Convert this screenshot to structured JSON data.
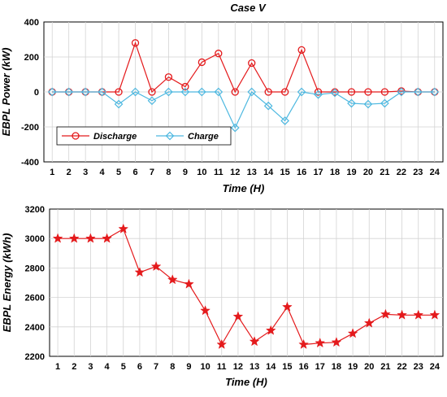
{
  "chart_data": [
    {
      "type": "line",
      "title": "Case V",
      "xlabel": "Time (H)",
      "ylabel": "EBPL Power (kW)",
      "x": [
        1,
        2,
        3,
        4,
        5,
        6,
        7,
        8,
        9,
        10,
        11,
        12,
        13,
        14,
        15,
        16,
        17,
        18,
        19,
        20,
        21,
        22,
        23,
        24
      ],
      "xlim": [
        0.5,
        24.5
      ],
      "ylim": [
        -400,
        400
      ],
      "yticks": [
        -400,
        -200,
        0,
        200,
        400
      ],
      "grid": true,
      "legend_position": "bottom-left",
      "series": [
        {
          "name": "Discharge",
          "color": "#e41a1c",
          "marker": "circle",
          "values": [
            0,
            0,
            0,
            0,
            0,
            280,
            0,
            85,
            30,
            170,
            220,
            0,
            165,
            0,
            0,
            240,
            0,
            0,
            0,
            0,
            0,
            5,
            0,
            0
          ]
        },
        {
          "name": "Charge",
          "color": "#4db8e0",
          "marker": "diamond",
          "values": [
            0,
            0,
            0,
            0,
            -70,
            0,
            -50,
            0,
            0,
            0,
            0,
            -205,
            0,
            -80,
            -165,
            0,
            -15,
            -5,
            -65,
            -70,
            -65,
            0,
            0,
            0
          ]
        }
      ]
    },
    {
      "type": "line",
      "title": "",
      "xlabel": "Time (H)",
      "ylabel": "EBPL Energy (kWh)",
      "x": [
        1,
        2,
        3,
        4,
        5,
        6,
        7,
        8,
        9,
        10,
        11,
        12,
        13,
        14,
        15,
        16,
        17,
        18,
        19,
        20,
        21,
        22,
        23,
        24
      ],
      "xlim": [
        0.5,
        24.5
      ],
      "ylim": [
        2200,
        3200
      ],
      "yticks": [
        2200,
        2400,
        2600,
        2800,
        3000,
        3200
      ],
      "grid": true,
      "series": [
        {
          "color": "#e41a1c",
          "marker": "star",
          "values": [
            3000,
            3000,
            3000,
            3000,
            3065,
            2770,
            2810,
            2720,
            2690,
            2510,
            2280,
            2470,
            2300,
            2375,
            2535,
            2280,
            2290,
            2295,
            2355,
            2425,
            2485,
            2480,
            2480,
            2480
          ]
        }
      ]
    }
  ]
}
